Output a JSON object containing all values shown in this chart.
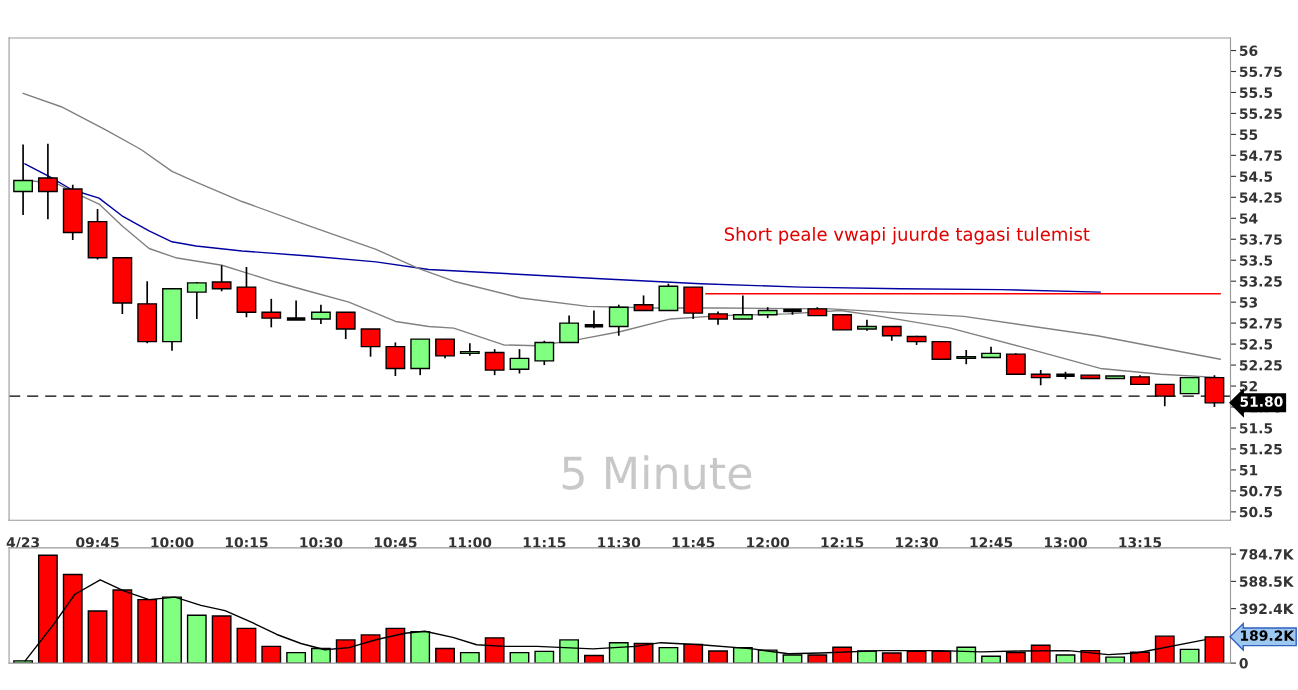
{
  "chart_data": [
    {
      "type": "candlestick",
      "title": "5 Minute",
      "x": [
        9.5,
        9.5833,
        9.6667,
        9.75,
        9.8333,
        9.9167,
        10,
        10.0833,
        10.1667,
        10.25,
        10.3333,
        10.4167,
        10.5,
        10.5833,
        10.6667,
        10.75,
        10.8333,
        10.9167,
        11,
        11.0833,
        11.1667,
        11.25,
        11.3333,
        11.4167,
        11.5,
        11.5833,
        11.6667,
        11.75,
        11.8333,
        11.9167,
        12,
        12.0833,
        12.1667,
        12.25,
        12.3333,
        12.4167,
        12.5,
        12.5833,
        12.6667,
        12.75,
        12.8333,
        12.9167,
        13,
        13.0833,
        13.1667,
        13.25,
        13.3333,
        13.4167,
        13.5
      ],
      "ohlc": [
        [
          54.32,
          54.88,
          54.04,
          54.45
        ],
        [
          54.48,
          54.89,
          53.99,
          54.32
        ],
        [
          54.35,
          54.4,
          53.74,
          53.83
        ],
        [
          53.96,
          54.11,
          53.51,
          53.53
        ],
        [
          53.53,
          53.53,
          52.86,
          52.99
        ],
        [
          52.98,
          53.25,
          52.51,
          52.53
        ],
        [
          52.53,
          53.16,
          52.42,
          53.16
        ],
        [
          53.12,
          53.24,
          52.8,
          53.23
        ],
        [
          53.24,
          53.44,
          53.13,
          53.16
        ],
        [
          53.18,
          53.42,
          52.82,
          52.88
        ],
        [
          52.88,
          53.04,
          52.7,
          52.81
        ],
        [
          52.8,
          53.02,
          52.8,
          52.8
        ],
        [
          52.8,
          52.97,
          52.74,
          52.88
        ],
        [
          52.88,
          52.88,
          52.56,
          52.68
        ],
        [
          52.68,
          52.68,
          52.35,
          52.47
        ],
        [
          52.47,
          52.52,
          52.12,
          52.21
        ],
        [
          52.21,
          52.56,
          52.13,
          52.56
        ],
        [
          52.56,
          52.56,
          52.33,
          52.36
        ],
        [
          52.39,
          52.51,
          52.36,
          52.41
        ],
        [
          52.4,
          52.44,
          52.13,
          52.19
        ],
        [
          52.2,
          52.44,
          52.15,
          52.33
        ],
        [
          52.3,
          52.54,
          52.25,
          52.52
        ],
        [
          52.52,
          52.84,
          52.52,
          52.75
        ],
        [
          52.72,
          52.9,
          52.69,
          52.72
        ],
        [
          52.71,
          52.97,
          52.6,
          52.94
        ],
        [
          52.97,
          53.08,
          52.9,
          52.9
        ],
        [
          52.9,
          53.22,
          52.9,
          53.19
        ],
        [
          53.18,
          53.18,
          52.8,
          52.87
        ],
        [
          52.86,
          52.89,
          52.73,
          52.8
        ],
        [
          52.8,
          53.08,
          52.8,
          52.85
        ],
        [
          52.85,
          52.94,
          52.81,
          52.9
        ],
        [
          52.9,
          52.92,
          52.85,
          52.9
        ],
        [
          52.92,
          52.94,
          52.84,
          52.84
        ],
        [
          52.85,
          52.85,
          52.67,
          52.67
        ],
        [
          52.68,
          52.79,
          52.66,
          52.71
        ],
        [
          52.71,
          52.71,
          52.54,
          52.6
        ],
        [
          52.59,
          52.6,
          52.49,
          52.53
        ],
        [
          52.53,
          52.53,
          52.32,
          52.32
        ],
        [
          52.33,
          52.43,
          52.26,
          52.35
        ],
        [
          52.34,
          52.47,
          52.34,
          52.39
        ],
        [
          52.38,
          52.39,
          52.14,
          52.14
        ],
        [
          52.14,
          52.19,
          52.01,
          52.1
        ],
        [
          52.13,
          52.17,
          52.08,
          52.13
        ],
        [
          52.13,
          52.13,
          52.09,
          52.09
        ],
        [
          52.09,
          52.12,
          52.09,
          52.12
        ],
        [
          52.11,
          52.13,
          52.02,
          52.02
        ],
        [
          52.02,
          52.02,
          51.76,
          51.88
        ],
        [
          51.91,
          52.1,
          51.91,
          52.1
        ],
        [
          52.1,
          52.13,
          51.75,
          51.8
        ]
      ],
      "colors": [
        "#80ff80",
        "#ff0000",
        "#ff0000",
        "#ff0000",
        "#ff0000",
        "#ff0000",
        "#80ff80",
        "#80ff80",
        "#ff0000",
        "#ff0000",
        "#ff0000",
        "#000000",
        "#80ff80",
        "#ff0000",
        "#ff0000",
        "#ff0000",
        "#80ff80",
        "#ff0000",
        "#80ff80",
        "#ff0000",
        "#80ff80",
        "#80ff80",
        "#80ff80",
        "#000000",
        "#80ff80",
        "#ff0000",
        "#80ff80",
        "#ff0000",
        "#ff0000",
        "#80ff80",
        "#80ff80",
        "#000000",
        "#ff0000",
        "#ff0000",
        "#80ff80",
        "#ff0000",
        "#ff0000",
        "#ff0000",
        "#80ff80",
        "#80ff80",
        "#ff0000",
        "#ff0000",
        "#000000",
        "#ff0000",
        "#80ff80",
        "#ff0000",
        "#ff0000",
        "#80ff80",
        "#ff0000"
      ],
      "series": [
        {
          "type": "line",
          "color": "#0000a0",
          "x": [
            9.506,
            9.587,
            9.664,
            9.755,
            9.832,
            9.923,
            10.0,
            10.081,
            10.235,
            10.46,
            10.685,
            10.862,
            11.44,
            11.775,
            12.111,
            12.446,
            12.782,
            13.117
          ],
          "values": [
            54.65,
            54.5,
            54.34,
            54.24,
            54.03,
            53.85,
            53.72,
            53.67,
            53.61,
            53.55,
            53.48,
            53.39,
            53.28,
            53.22,
            53.18,
            53.16,
            53.15,
            53.12
          ]
        },
        {
          "type": "line",
          "color": "#808080",
          "x": [
            9.5,
            9.628,
            9.779,
            9.896,
            10.0,
            10.081,
            10.235,
            10.46,
            10.685,
            10.829,
            10.946,
            11.171,
            11.396,
            11.617,
            11.842,
            12.211,
            12.658,
            13.107,
            13.52
          ],
          "values": [
            55.49,
            55.33,
            55.05,
            54.82,
            54.56,
            54.43,
            54.2,
            53.91,
            53.63,
            53.4,
            53.25,
            53.05,
            52.95,
            52.93,
            52.93,
            52.92,
            52.83,
            52.6,
            52.32
          ]
        },
        {
          "type": "line",
          "color": "#808080",
          "x": [
            9.506,
            9.61,
            9.699,
            9.755,
            9.832,
            9.923,
            10.012,
            10.168,
            10.348,
            10.46,
            10.594,
            10.751,
            10.862,
            10.946,
            11.114,
            11.228,
            11.372,
            11.507,
            11.674,
            11.842,
            12.067,
            12.245,
            12.379,
            12.614,
            12.849,
            13.117,
            13.319,
            13.52
          ],
          "values": [
            54.45,
            54.42,
            54.26,
            54.17,
            53.91,
            53.64,
            53.53,
            53.44,
            53.24,
            53.13,
            53.0,
            52.77,
            52.71,
            52.69,
            52.49,
            52.48,
            52.56,
            52.65,
            52.8,
            52.84,
            52.86,
            52.9,
            52.83,
            52.69,
            52.47,
            52.21,
            52.14,
            52.1
          ]
        },
        {
          "type": "line",
          "color": "#ff0000",
          "x": [
            11.792,
            13.52
          ],
          "values": [
            53.1,
            53.1
          ]
        }
      ],
      "ref_lines": [
        {
          "axis": "y",
          "value": 51.88,
          "color": "#000000",
          "line_style": "dashed"
        }
      ],
      "annotations": [
        "Short peale vwapi juurde tagasi tulemist",
        "51.80"
      ],
      "xlim": [
        9.453,
        13.554
      ],
      "xticks": [
        {
          "value": 9.5,
          "label": "4/23"
        },
        {
          "value": 9.75,
          "label": "09:45"
        },
        {
          "value": 10,
          "label": "10:00"
        },
        {
          "value": 10.25,
          "label": "10:15"
        },
        {
          "value": 10.5,
          "label": "10:30"
        },
        {
          "value": 10.75,
          "label": "10:45"
        },
        {
          "value": 11,
          "label": "11:00"
        },
        {
          "value": 11.25,
          "label": "11:15"
        },
        {
          "value": 11.5,
          "label": "11:30"
        },
        {
          "value": 11.75,
          "label": "11:45"
        },
        {
          "value": 12,
          "label": "12:00"
        },
        {
          "value": 12.25,
          "label": "12:15"
        },
        {
          "value": 12.5,
          "label": "12:30"
        },
        {
          "value": 12.75,
          "label": "12:45"
        },
        {
          "value": 13,
          "label": "13:00"
        },
        {
          "value": 13.25,
          "label": "13:15"
        }
      ],
      "ylim": [
        50.4,
        56.15
      ],
      "yticks": [
        50.5,
        50.75,
        51,
        51.25,
        51.5,
        51.75,
        52,
        52.25,
        52.5,
        52.75,
        53,
        53.25,
        53.5,
        53.75,
        54,
        54.25,
        54.5,
        54.75,
        55,
        55.25,
        55.5,
        55.75,
        56
      ],
      "grid": false,
      "legend": false
    },
    {
      "type": "bar",
      "x": [
        9.5,
        9.5833,
        9.6667,
        9.75,
        9.8333,
        9.9167,
        10,
        10.0833,
        10.1667,
        10.25,
        10.3333,
        10.4167,
        10.5,
        10.5833,
        10.6667,
        10.75,
        10.8333,
        10.9167,
        11,
        11.0833,
        11.1667,
        11.25,
        11.3333,
        11.4167,
        11.5,
        11.5833,
        11.6667,
        11.75,
        11.8333,
        11.9167,
        12,
        12.0833,
        12.1667,
        12.25,
        12.3333,
        12.4167,
        12.5,
        12.5833,
        12.6667,
        12.75,
        12.8333,
        12.9167,
        13,
        13.0833,
        13.1667,
        13.25,
        13.3333,
        13.4167,
        13.5
      ],
      "values": [
        16,
        777,
        638,
        375,
        526,
        457,
        475,
        345,
        339,
        250,
        120,
        75,
        105,
        167,
        203,
        250,
        227,
        105,
        75,
        182,
        75,
        84,
        167,
        55,
        147,
        141,
        111,
        135,
        87,
        111,
        93,
        58,
        58,
        114,
        87,
        73,
        84,
        84,
        114,
        49,
        76,
        129,
        58,
        90,
        43,
        78,
        194,
        99,
        189.2
      ],
      "colors": [
        "#80ff80",
        "#ff0000",
        "#ff0000",
        "#ff0000",
        "#ff0000",
        "#ff0000",
        "#80ff80",
        "#80ff80",
        "#ff0000",
        "#ff0000",
        "#ff0000",
        "#80ff80",
        "#80ff80",
        "#ff0000",
        "#ff0000",
        "#ff0000",
        "#80ff80",
        "#ff0000",
        "#80ff80",
        "#ff0000",
        "#80ff80",
        "#80ff80",
        "#80ff80",
        "#ff0000",
        "#80ff80",
        "#ff0000",
        "#80ff80",
        "#ff0000",
        "#ff0000",
        "#80ff80",
        "#80ff80",
        "#80ff80",
        "#ff0000",
        "#ff0000",
        "#80ff80",
        "#ff0000",
        "#ff0000",
        "#ff0000",
        "#80ff80",
        "#80ff80",
        "#ff0000",
        "#ff0000",
        "#80ff80",
        "#ff0000",
        "#80ff80",
        "#ff0000",
        "#ff0000",
        "#80ff80",
        "#ff0000"
      ],
      "series": [
        {
          "type": "line",
          "color": "#000000",
          "x": [
            9.507,
            9.601,
            9.674,
            9.759,
            9.842,
            9.923,
            10.01,
            10.097,
            10.178,
            10.272,
            10.352,
            10.433,
            10.513,
            10.594,
            10.688,
            10.782,
            10.849,
            10.943,
            11.023,
            11.117,
            11.225,
            11.413,
            11.557,
            11.641,
            11.775,
            11.95,
            12.07,
            12.178,
            12.379,
            12.58,
            12.715,
            12.849,
            13.01,
            13.144,
            13.238,
            13.466
          ],
          "values": [
            16,
            274,
            496,
            600,
            517,
            457,
            475,
            416,
            378,
            289,
            206,
            141,
            96,
            111,
            170,
            215,
            229,
            185,
            132,
            120,
            120,
            102,
            120,
            147,
            132,
            102,
            67,
            73,
            90,
            90,
            81,
            87,
            90,
            61,
            73,
            167
          ]
        }
      ],
      "annotations": [
        "189.2K"
      ],
      "xlim": [
        9.453,
        13.554
      ],
      "ylim": [
        0,
        830
      ],
      "yticks": [
        0,
        {
          "value": 392.4,
          "label": "392.4K"
        },
        {
          "value": 588.5,
          "label": "588.5K"
        },
        {
          "value": 784.7,
          "label": "784.7K"
        }
      ],
      "tick_labels": "y",
      "grid": false,
      "legend": false
    }
  ]
}
